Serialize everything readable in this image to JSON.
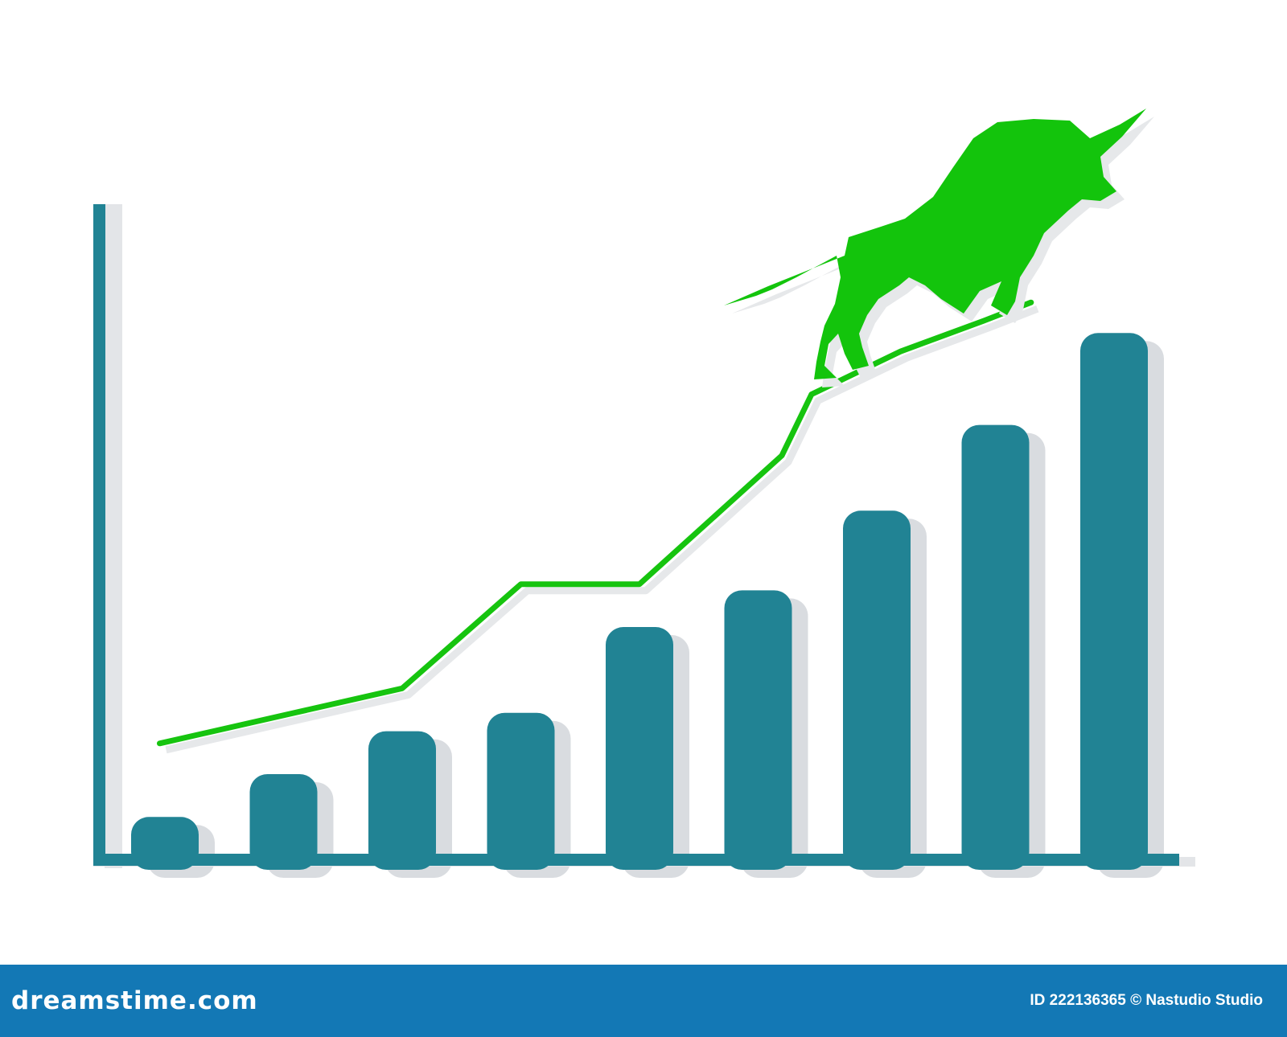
{
  "chart_data": {
    "type": "bar",
    "categories": [
      "",
      "",
      "",
      "",
      "",
      "",
      "",
      "",
      ""
    ],
    "values": [
      6,
      13,
      20,
      23,
      37,
      43,
      56,
      70,
      85
    ],
    "overlay_line": {
      "x_positions": [
        0.6,
        2.0,
        3.0,
        4.0,
        5.2,
        5.45,
        6.2,
        6.9,
        7.3
      ],
      "values": [
        18,
        27,
        44,
        44,
        65,
        75,
        82,
        87,
        90
      ]
    },
    "ylim": [
      0,
      100
    ],
    "grid": false,
    "legend": "none",
    "title": "",
    "xlabel": "",
    "ylabel": ""
  },
  "colors": {
    "bar": "#218394",
    "bar_shadow": "#d9dce0",
    "axis": "#218394",
    "trend_line": "#16c40f",
    "bull": "#13c40c",
    "footer_bg": "#1378b5"
  },
  "icons": {
    "bull": "bull-icon"
  },
  "footer": {
    "brand": "dreamstime.com",
    "credit": "ID 222136365 © Nastudio Studio"
  }
}
